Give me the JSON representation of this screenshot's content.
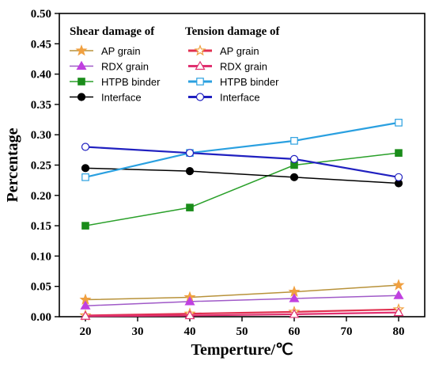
{
  "chart_data": {
    "type": "line",
    "xlabel": "Temperture/℃",
    "ylabel": "Percentage",
    "xlim": [
      15,
      85
    ],
    "ylim": [
      0,
      0.5
    ],
    "x_ticks": [
      "20",
      "30",
      "40",
      "50",
      "60",
      "70",
      "80"
    ],
    "y_ticks": [
      "0.00",
      "0.05",
      "0.10",
      "0.15",
      "0.20",
      "0.25",
      "0.30",
      "0.35",
      "0.40",
      "0.45",
      "0.50"
    ],
    "legend_groups": [
      {
        "title": "Shear damage of",
        "placement": "top-left"
      },
      {
        "title": "Tension damage of",
        "placement": "top-center"
      }
    ],
    "x": [
      20,
      40,
      60,
      80
    ],
    "series": [
      {
        "name": "AP grain",
        "group": "Shear damage of",
        "marker": "star",
        "filled": true,
        "color": "#f0a040",
        "line_color": "#b8923a",
        "values": [
          0.028,
          0.032,
          0.041,
          0.052
        ]
      },
      {
        "name": "RDX grain",
        "group": "Shear damage of",
        "marker": "triangle",
        "filled": true,
        "color": "#c040e0",
        "line_color": "#a05ac8",
        "values": [
          0.018,
          0.025,
          0.03,
          0.035
        ]
      },
      {
        "name": "HTPB binder",
        "group": "Shear damage of",
        "marker": "square",
        "filled": true,
        "color": "#1a8c1a",
        "line_color": "#2aa02a",
        "values": [
          0.15,
          0.18,
          0.25,
          0.27
        ]
      },
      {
        "name": "Interface",
        "group": "Shear damage of",
        "marker": "circle",
        "filled": true,
        "color": "#000000",
        "line_color": "#000000",
        "values": [
          0.245,
          0.24,
          0.23,
          0.22
        ]
      },
      {
        "name": "AP grain",
        "group": "Tension damage of",
        "marker": "star",
        "filled": false,
        "color": "#f0a040",
        "line_color": "#e03050",
        "values": [
          0.002,
          0.005,
          0.008,
          0.012
        ]
      },
      {
        "name": "RDX grain",
        "group": "Tension damage of",
        "marker": "triangle",
        "filled": false,
        "color": "#e03070",
        "line_color": "#e03070",
        "values": [
          0.001,
          0.002,
          0.004,
          0.007
        ]
      },
      {
        "name": "HTPB binder",
        "group": "Tension damage of",
        "marker": "square",
        "filled": false,
        "color": "#2aa0e0",
        "line_color": "#2aa0e0",
        "values": [
          0.23,
          0.27,
          0.29,
          0.32
        ]
      },
      {
        "name": "Interface",
        "group": "Tension damage of",
        "marker": "circle",
        "filled": false,
        "color": "#2020c0",
        "line_color": "#2020c0",
        "values": [
          0.28,
          0.27,
          0.26,
          0.23
        ]
      }
    ]
  }
}
